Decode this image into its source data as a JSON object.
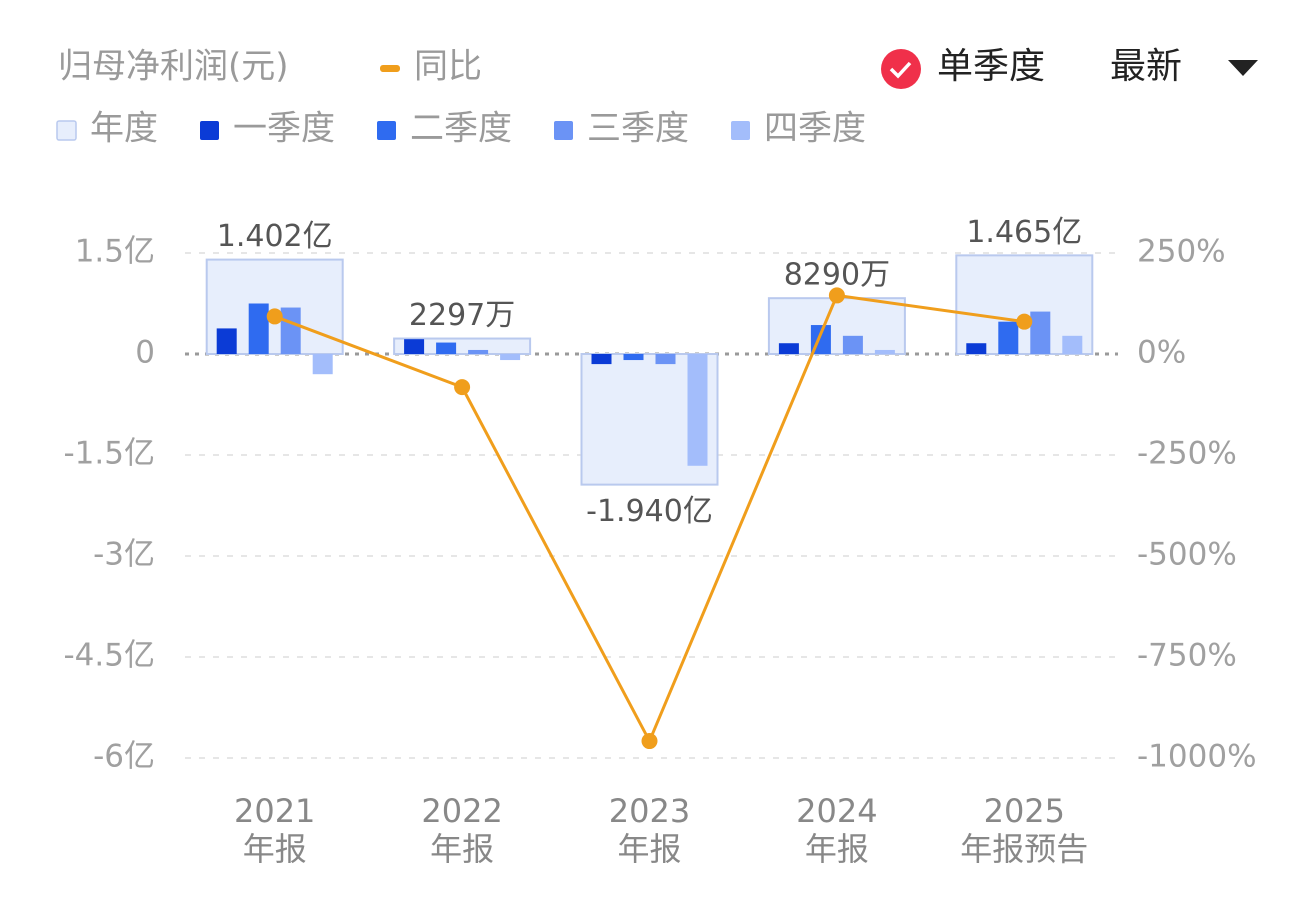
{
  "chart_data": {
    "type": "bar",
    "title": "归母净利润(元)",
    "controls": {
      "single_quarter": "单季度",
      "latest": "最新"
    },
    "categories": [
      "2021",
      "2022",
      "2023",
      "2024",
      "2025"
    ],
    "category_sublabels": [
      "年报",
      "年报",
      "年报",
      "年报",
      "年报预告"
    ],
    "series": [
      {
        "name": "年度",
        "type": "bar",
        "color": "#e7eefc",
        "values": [
          140200000,
          22970000,
          -194000000,
          82900000,
          146500000
        ],
        "value_labels": [
          "1.402亿",
          "2297万",
          "-1.940亿",
          "8290万",
          "1.465亿"
        ]
      },
      {
        "name": "一季度",
        "type": "bar",
        "color": "#0b3bd6",
        "values": [
          38000000,
          22000000,
          -15000000,
          16000000,
          16000000
        ]
      },
      {
        "name": "二季度",
        "type": "bar",
        "color": "#2f6bf0",
        "values": [
          75000000,
          17000000,
          -9000000,
          43000000,
          48000000
        ]
      },
      {
        "name": "三季度",
        "type": "bar",
        "color": "#6b93f5",
        "values": [
          69000000,
          6000000,
          -15000000,
          27000000,
          63000000
        ]
      },
      {
        "name": "四季度",
        "type": "bar",
        "color": "#a3bdfb",
        "values": [
          -30000000,
          -9000000,
          -166000000,
          6000000,
          27000000
        ]
      },
      {
        "name": "同比",
        "type": "line",
        "axis": "y2",
        "color": "#f09e1c",
        "values": [
          93,
          -82,
          -958,
          145,
          80
        ]
      }
    ],
    "ylim": [
      -600000000,
      150000000
    ],
    "yticks": [
      {
        "value": 150000000,
        "label": "1.5亿"
      },
      0,
      {
        "value": -150000000,
        "label": "-1.5亿"
      },
      {
        "value": -300000000,
        "label": "-3亿"
      },
      {
        "value": -450000000,
        "label": "-4.5亿"
      },
      {
        "value": -600000000,
        "label": "-6亿"
      }
    ],
    "y2lim": [
      -1000,
      250
    ],
    "y2ticks": [
      {
        "value": 250,
        "label": "250%"
      },
      {
        "value": 0,
        "label": "0%"
      },
      {
        "value": -250,
        "label": "-250%"
      },
      {
        "value": -500,
        "label": "-500%"
      },
      {
        "value": -750,
        "label": "-750%"
      },
      {
        "value": -1000,
        "label": "-1000%"
      }
    ],
    "grid": true
  }
}
